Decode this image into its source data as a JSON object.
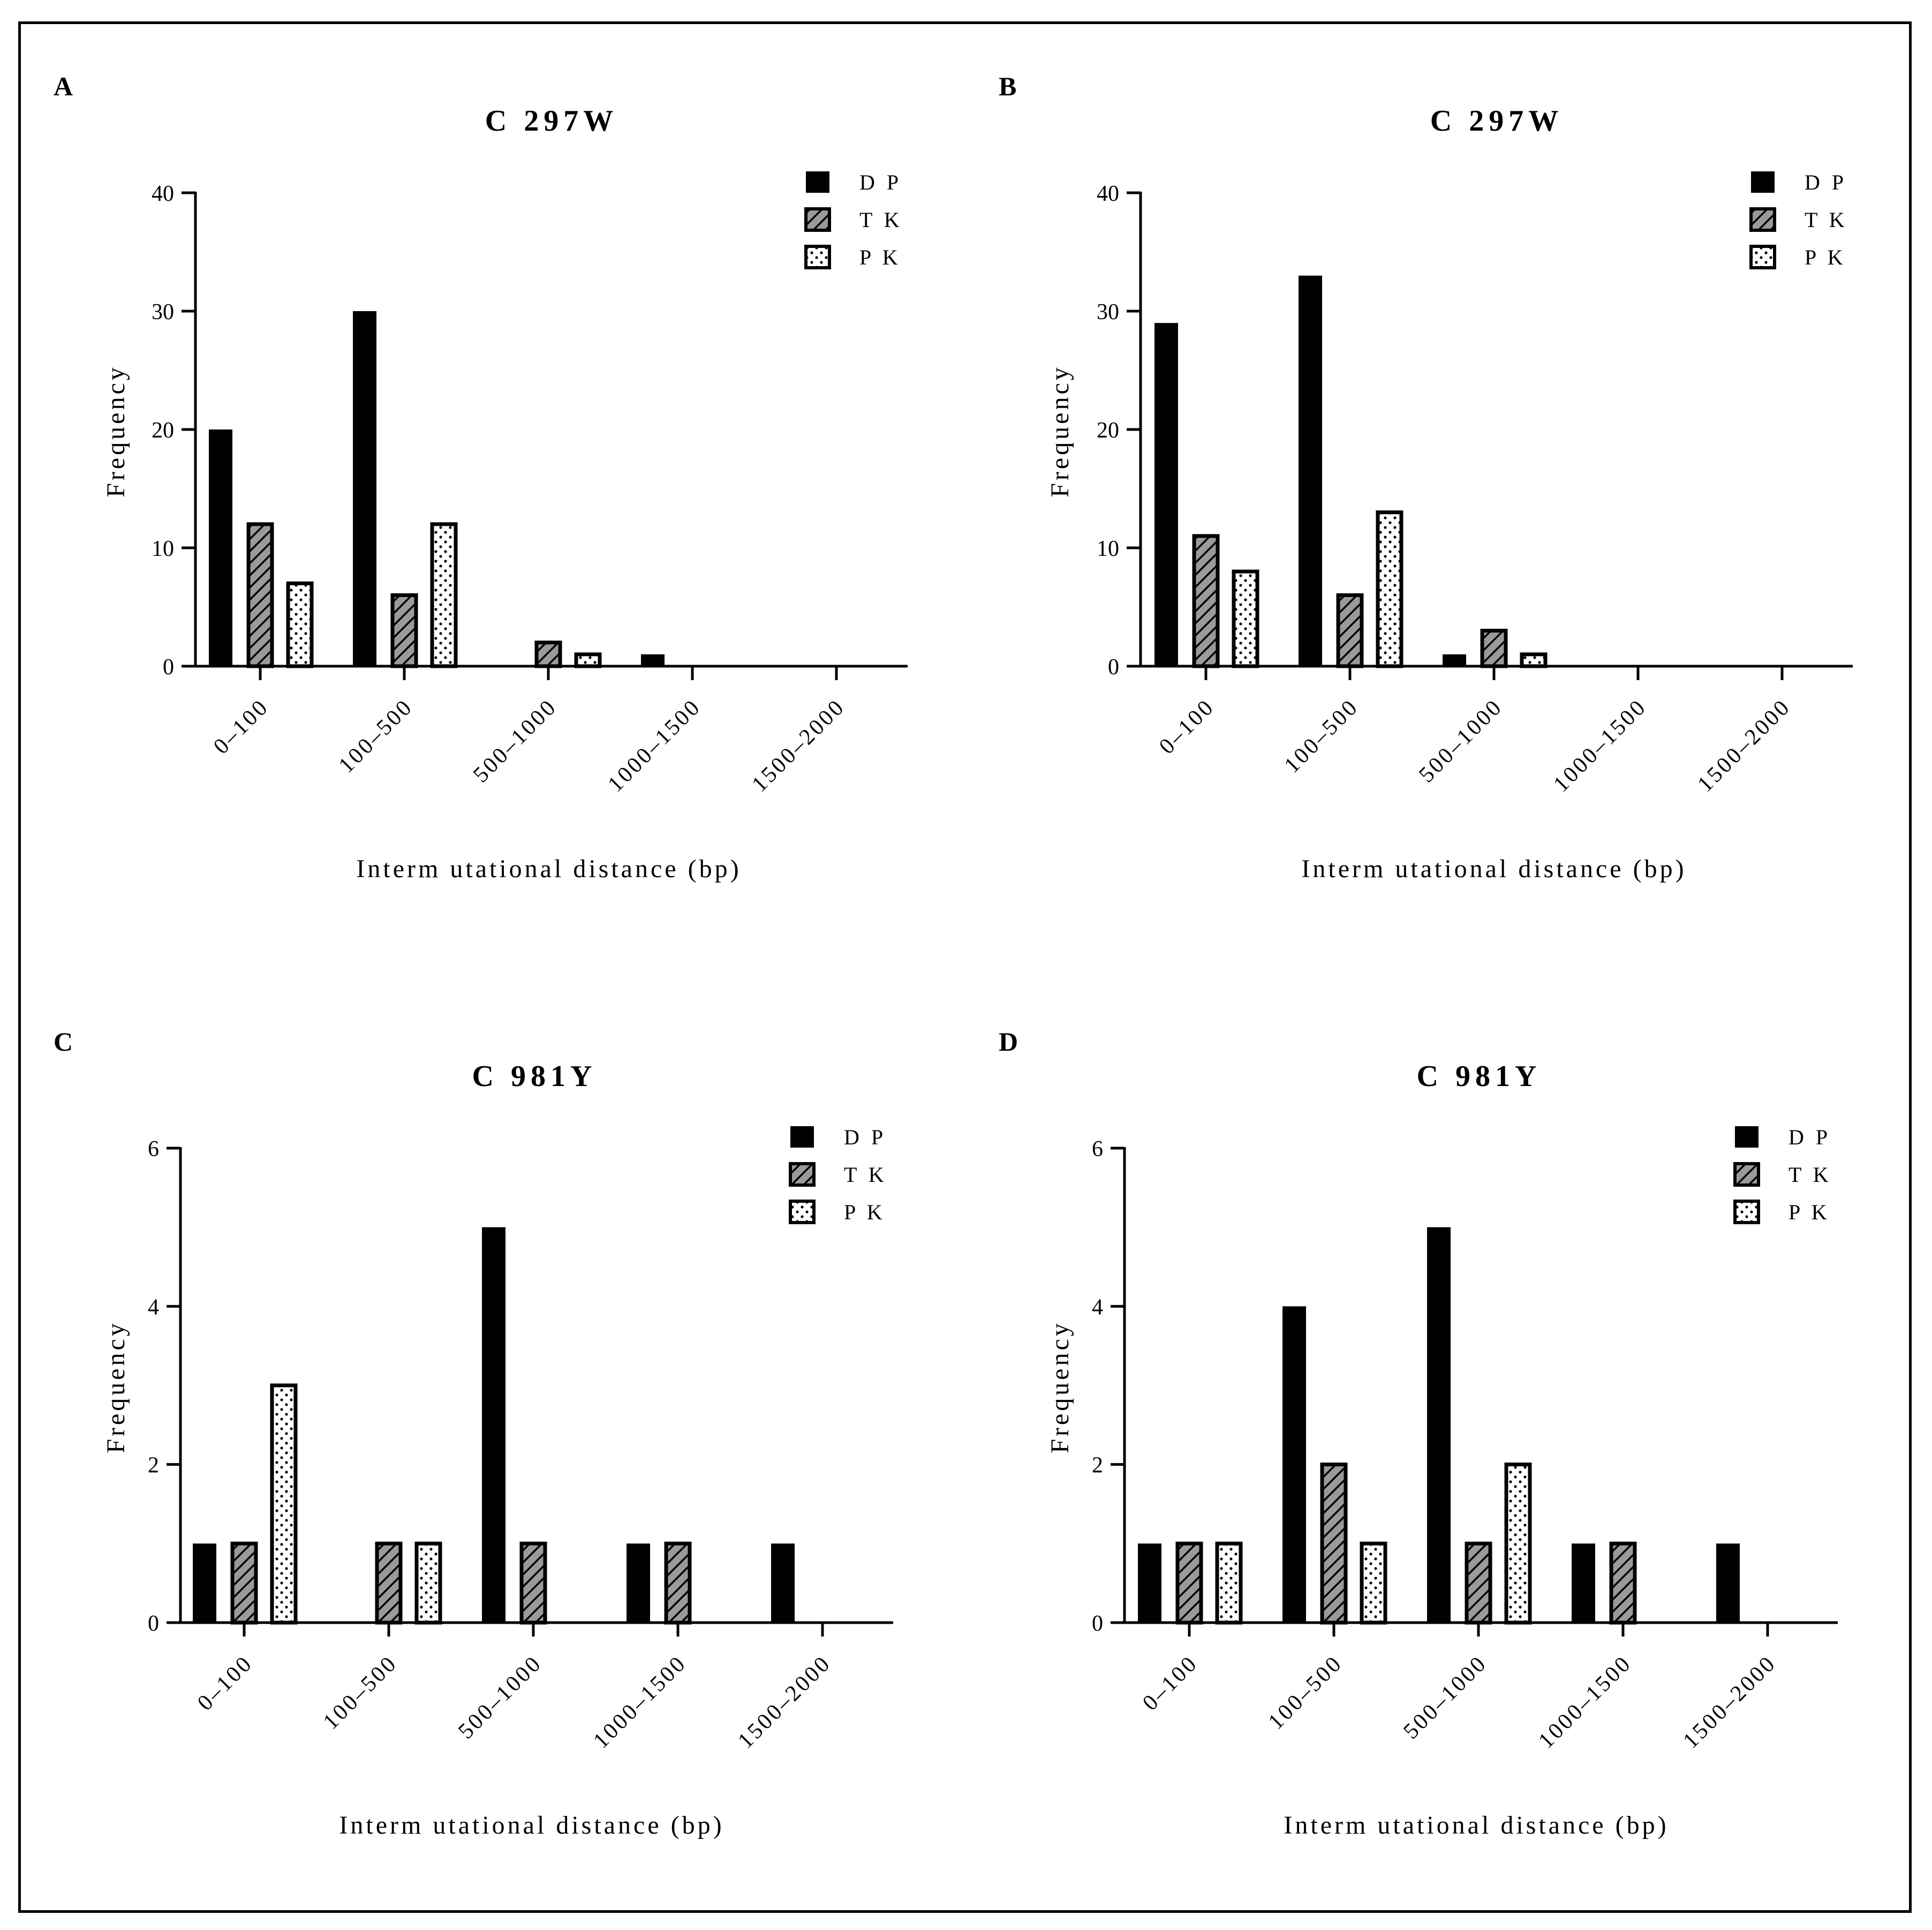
{
  "colors": {
    "dp": "#000000",
    "tk": "#9a9a9a",
    "pk": "#ffffff",
    "stroke": "#000000"
  },
  "chart_data": [
    {
      "panel": "A",
      "type": "bar",
      "title": "C 297W",
      "xlabel": "Interm utational distance (bp)",
      "ylabel": "Frequency",
      "categories": [
        "0–100",
        "100–500",
        "500–1000",
        "1000–1500",
        "1500–2000"
      ],
      "ylim": [
        0,
        40
      ],
      "yticks": [
        0,
        10,
        20,
        30,
        40
      ],
      "legend": "top-right",
      "series": [
        {
          "name": "D P",
          "values": [
            20,
            30,
            0,
            1,
            0
          ]
        },
        {
          "name": "T K",
          "values": [
            12,
            6,
            2,
            0,
            0
          ]
        },
        {
          "name": "P K",
          "values": [
            7,
            12,
            1,
            0,
            0
          ]
        }
      ]
    },
    {
      "panel": "B",
      "type": "bar",
      "title": "C 297W",
      "xlabel": "Interm utational distance (bp)",
      "ylabel": "Frequency",
      "categories": [
        "0–100",
        "100–500",
        "500–1000",
        "1000–1500",
        "1500–2000"
      ],
      "ylim": [
        0,
        40
      ],
      "yticks": [
        0,
        10,
        20,
        30,
        40
      ],
      "legend": "top-right",
      "series": [
        {
          "name": "D P",
          "values": [
            29,
            33,
            1,
            0,
            0
          ]
        },
        {
          "name": "T K",
          "values": [
            11,
            6,
            3,
            0,
            0
          ]
        },
        {
          "name": "P K",
          "values": [
            8,
            13,
            1,
            0,
            0
          ]
        }
      ]
    },
    {
      "panel": "C",
      "type": "bar",
      "title": "C 981Y",
      "xlabel": "Interm utational distance (bp)",
      "ylabel": "Frequency",
      "categories": [
        "0–100",
        "100–500",
        "500–1000",
        "1000–1500",
        "1500–2000"
      ],
      "ylim": [
        0,
        6
      ],
      "yticks": [
        0,
        2,
        4,
        6
      ],
      "legend": "top-right",
      "series": [
        {
          "name": "D P",
          "values": [
            1,
            0,
            5,
            1,
            1
          ]
        },
        {
          "name": "T K",
          "values": [
            1,
            1,
            1,
            1,
            0
          ]
        },
        {
          "name": "P K",
          "values": [
            3,
            1,
            0,
            0,
            0
          ]
        }
      ]
    },
    {
      "panel": "D",
      "type": "bar",
      "title": "C 981Y",
      "xlabel": "Interm utational distance (bp)",
      "ylabel": "Frequency",
      "categories": [
        "0–100",
        "100–500",
        "500–1000",
        "1000–1500",
        "1500–2000"
      ],
      "ylim": [
        0,
        6
      ],
      "yticks": [
        0,
        2,
        4,
        6
      ],
      "legend": "top-right",
      "series": [
        {
          "name": "D P",
          "values": [
            1,
            4,
            5,
            1,
            1
          ]
        },
        {
          "name": "T K",
          "values": [
            1,
            2,
            1,
            1,
            0
          ]
        },
        {
          "name": "P K",
          "values": [
            1,
            1,
            2,
            0,
            0
          ]
        }
      ]
    }
  ]
}
